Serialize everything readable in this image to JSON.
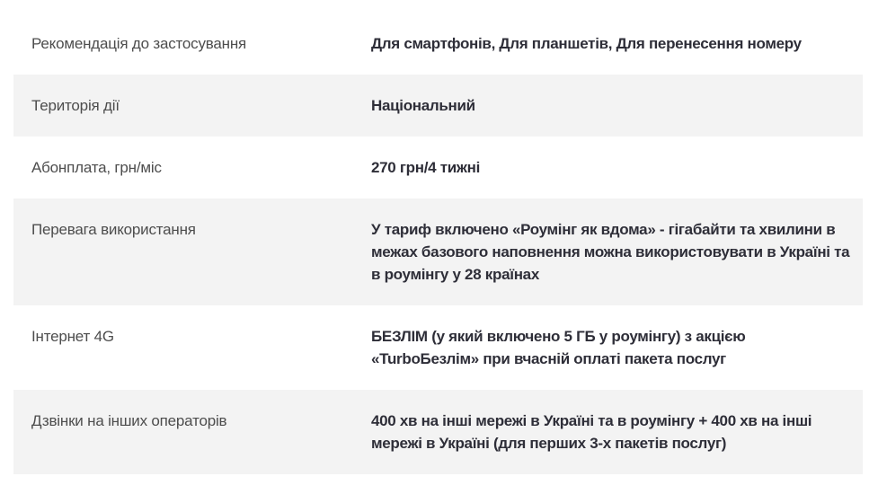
{
  "table": {
    "rows": [
      {
        "label": "Рекомендація до застосування",
        "value": "Для смартфонів, Для планшетів, Для перенесення номеру"
      },
      {
        "label": "Територія дії",
        "value": "Національний"
      },
      {
        "label": "Абонплата, грн/міс",
        "value": "270 грн/4 тижні"
      },
      {
        "label": "Перевага використання",
        "value": "У тариф включено «Роумінг як вдома» - гігабайти та хвилини в межах базового наповнення можна використовувати в Україні та в роумінгу у 28 країнах"
      },
      {
        "label": "Інтернет 4G",
        "value": "БЕЗЛІМ (у який включено 5 ГБ у роумінгу) з акцією «TurboБезлім» при вчасній оплаті пакета послуг"
      },
      {
        "label": "Дзвінки на інших операторів",
        "value": "400 хв на інші мережі в Україні та в роумінгу + 400 хв на інші мережі в Україні (для перших 3-х пакетів послуг)"
      }
    ],
    "colors": {
      "shaded_row_bg": "#f3f3f3",
      "label_text": "#4d4d4d",
      "value_text": "#2e2e38"
    }
  }
}
